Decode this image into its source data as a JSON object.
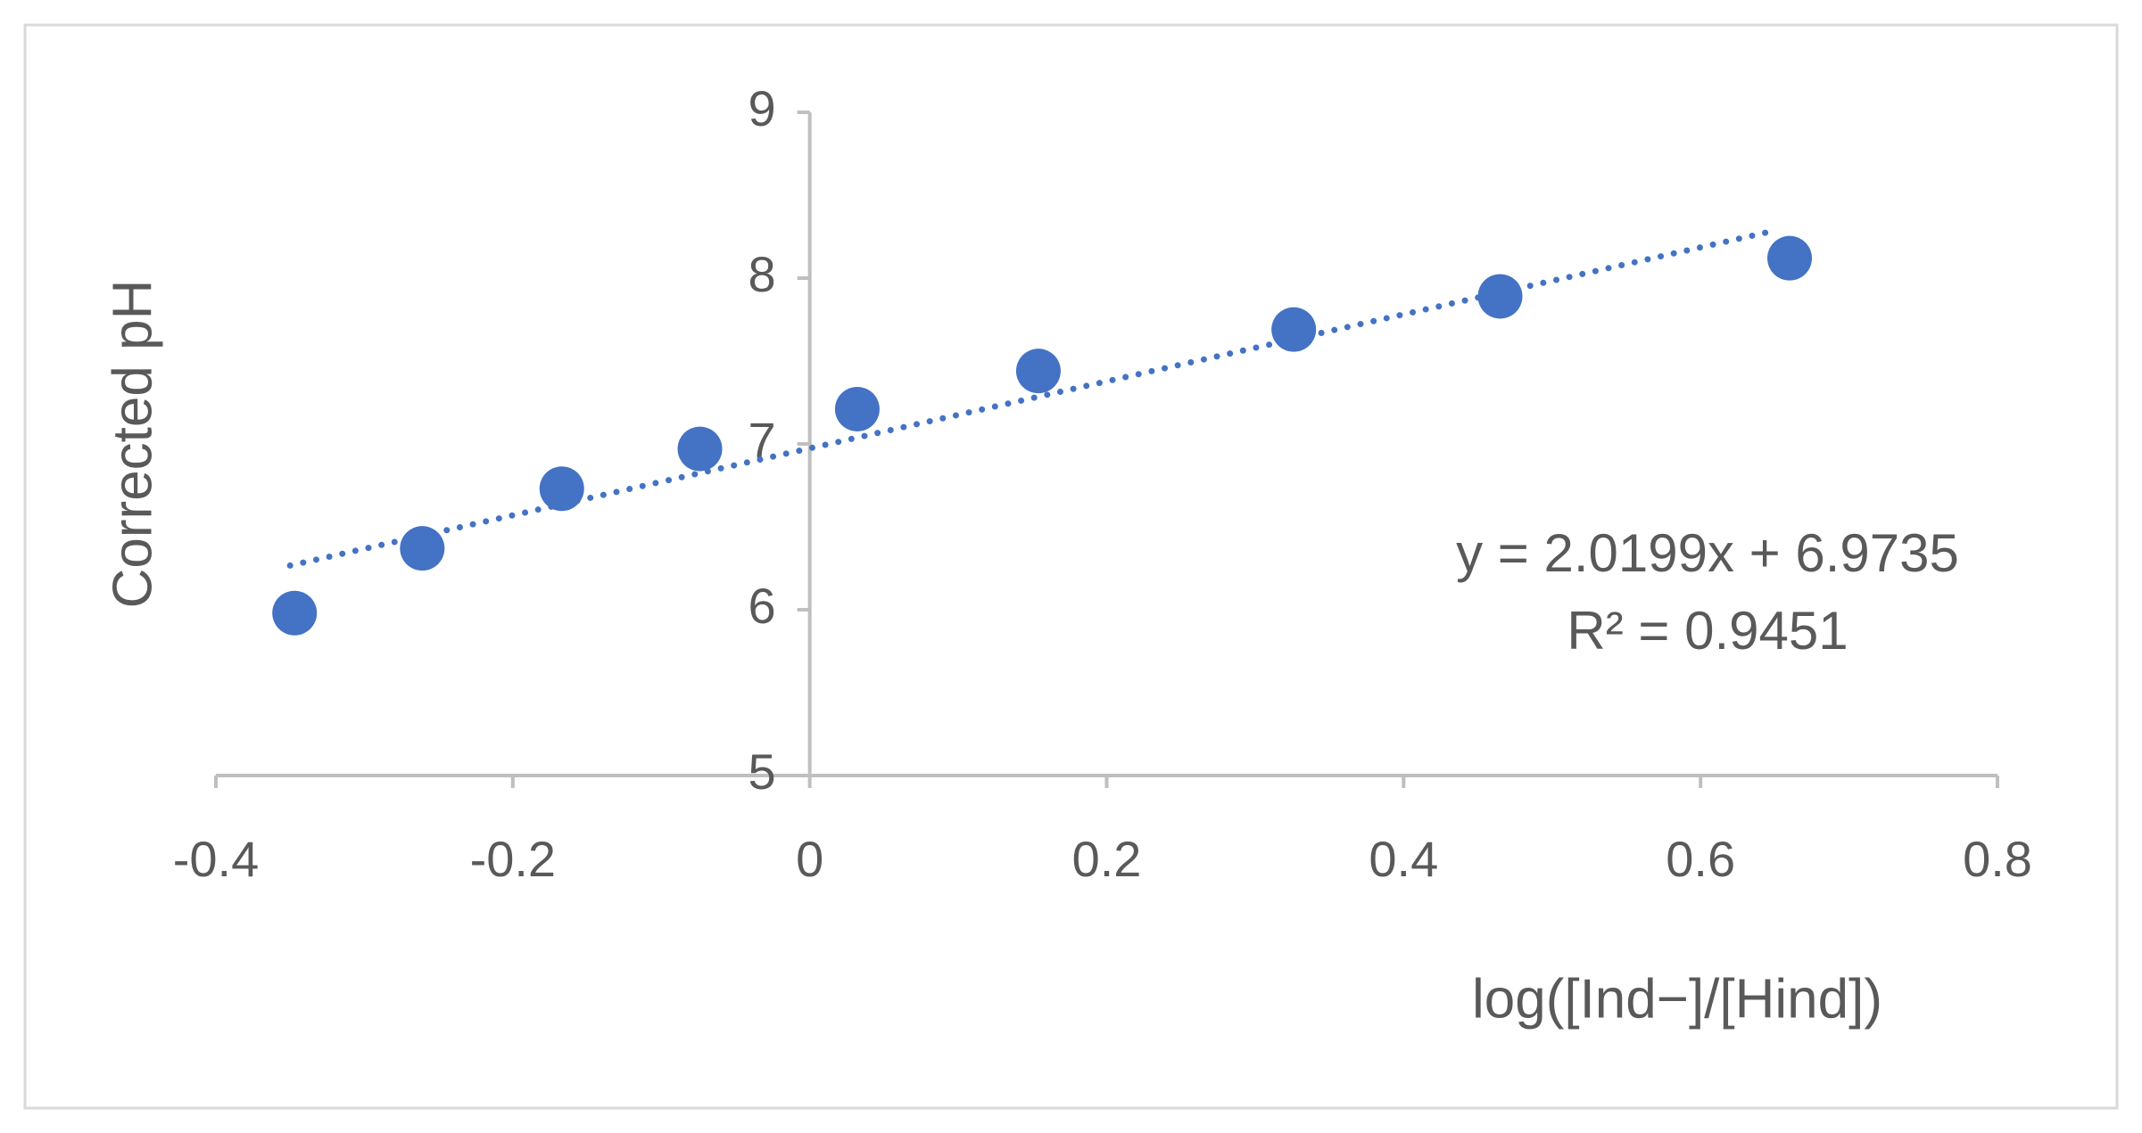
{
  "chart_data": {
    "type": "scatter",
    "x_label": "log([Ind−]/[Hind])",
    "y_label": "Corrected pH",
    "x": [
      -0.347,
      -0.261,
      -0.167,
      -0.074,
      0.032,
      0.154,
      0.326,
      0.465,
      0.66
    ],
    "values": [
      5.98,
      6.37,
      6.73,
      6.97,
      7.21,
      7.44,
      7.69,
      7.89,
      8.12
    ],
    "color": "#4472c4",
    "xlim": [
      -0.4,
      0.8
    ],
    "xticks": [
      -0.4,
      -0.2,
      0,
      0.2,
      0.4,
      0.6,
      0.8
    ],
    "ylim": [
      5,
      9
    ],
    "yticks": [
      5,
      6,
      7,
      8,
      9
    ],
    "trendline": {
      "slope": 2.0199,
      "intercept": 6.9735,
      "xrange": [
        -0.35,
        0.65
      ],
      "style": "dotted",
      "equation": "y = 2.0199x + 6.9735",
      "r_squared": "R² = 0.9451"
    }
  }
}
